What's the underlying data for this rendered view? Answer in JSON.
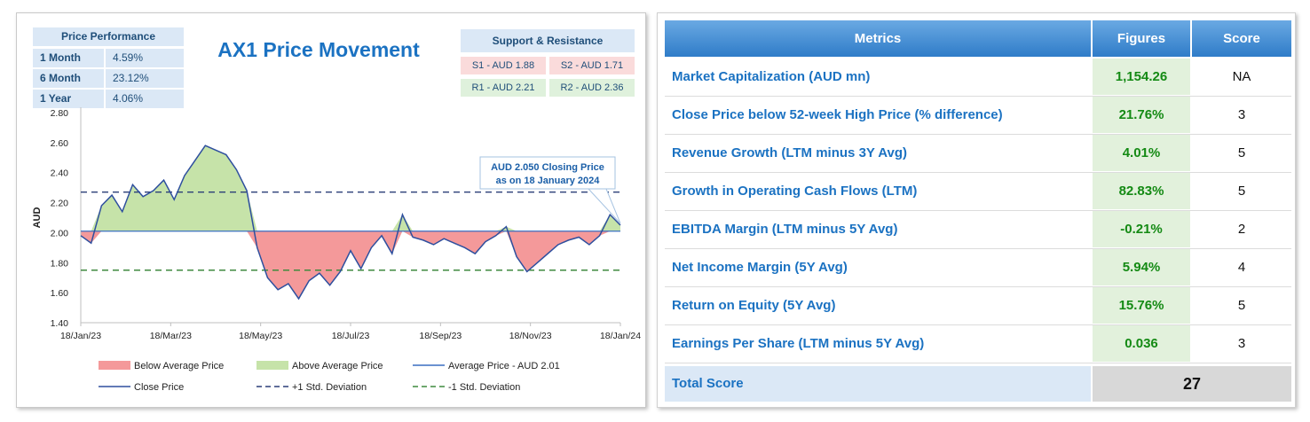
{
  "price_performance": {
    "header": "Price Performance",
    "rows": [
      {
        "period": "1 Month",
        "value": "4.59%"
      },
      {
        "period": "6 Month",
        "value": "23.12%"
      },
      {
        "period": "1 Year",
        "value": "4.06%"
      }
    ]
  },
  "support_resistance": {
    "header": "Support & Resistance",
    "s1": "S1 - AUD 1.88",
    "s2": "S2 - AUD 1.71",
    "r1": "R1 - AUD 2.21",
    "r2": "R2 - AUD 2.36"
  },
  "colors": {
    "below": "#f4999a",
    "above": "#c6e3a9",
    "line": "#2e4f9e",
    "avg": "#3a6fc2",
    "plus_sd": "#2b3f78",
    "minus_sd": "#3f8a3f",
    "title": "#1b72c2"
  },
  "chart_data": {
    "type": "area",
    "title": "AX1 Price Movement",
    "ylabel": "AUD",
    "ylim": [
      1.4,
      2.8
    ],
    "yticks": [
      "1.40",
      "1.60",
      "1.80",
      "2.00",
      "2.20",
      "2.40",
      "2.60",
      "2.80"
    ],
    "xticks": [
      "18/Jan/23",
      "18/Mar/23",
      "18/May/23",
      "18/Jul/23",
      "18/Sep/23",
      "18/Nov/23",
      "18/Jan/24"
    ],
    "average": 2.01,
    "plus_sd": 2.27,
    "minus_sd": 1.75,
    "annotation": {
      "line1": "AUD 2.050 Closing Price",
      "line2": "as on 18 January 2024"
    },
    "legend": [
      {
        "label": "Below Average Price",
        "kind": "fill-below"
      },
      {
        "label": "Above Average Price",
        "kind": "fill-above"
      },
      {
        "label": "Average Price - AUD 2.01",
        "kind": "line-avg"
      },
      {
        "label": "Close Price",
        "kind": "line-close"
      },
      {
        "label": "+1 Std. Deviation",
        "kind": "dash-plus"
      },
      {
        "label": "-1 Std. Deviation",
        "kind": "dash-minus"
      }
    ],
    "series": [
      {
        "name": "Close Price",
        "x": [
          "18/Jan/23",
          "25/Jan/23",
          "01/Feb/23",
          "08/Feb/23",
          "15/Feb/23",
          "22/Feb/23",
          "01/Mar/23",
          "08/Mar/23",
          "15/Mar/23",
          "22/Mar/23",
          "29/Mar/23",
          "05/Apr/23",
          "12/Apr/23",
          "19/Apr/23",
          "26/Apr/23",
          "03/May/23",
          "10/May/23",
          "17/May/23",
          "24/May/23",
          "31/May/23",
          "07/Jun/23",
          "14/Jun/23",
          "21/Jun/23",
          "28/Jun/23",
          "05/Jul/23",
          "12/Jul/23",
          "19/Jul/23",
          "26/Jul/23",
          "02/Aug/23",
          "09/Aug/23",
          "16/Aug/23",
          "23/Aug/23",
          "30/Aug/23",
          "06/Sep/23",
          "13/Sep/23",
          "20/Sep/23",
          "27/Sep/23",
          "04/Oct/23",
          "11/Oct/23",
          "18/Oct/23",
          "25/Oct/23",
          "01/Nov/23",
          "08/Nov/23",
          "15/Nov/23",
          "22/Nov/23",
          "29/Nov/23",
          "06/Dec/23",
          "13/Dec/23",
          "20/Dec/23",
          "27/Dec/23",
          "03/Jan/24",
          "10/Jan/24",
          "18/Jan/24"
        ],
        "values": [
          1.98,
          1.93,
          2.18,
          2.25,
          2.14,
          2.32,
          2.24,
          2.28,
          2.35,
          2.22,
          2.38,
          2.48,
          2.58,
          2.55,
          2.52,
          2.42,
          2.28,
          1.9,
          1.7,
          1.62,
          1.66,
          1.56,
          1.68,
          1.73,
          1.65,
          1.74,
          1.88,
          1.76,
          1.9,
          1.98,
          1.86,
          2.12,
          1.97,
          1.95,
          1.92,
          1.96,
          1.93,
          1.9,
          1.86,
          1.94,
          1.98,
          2.04,
          1.84,
          1.74,
          1.8,
          1.86,
          1.92,
          1.95,
          1.97,
          1.92,
          1.98,
          2.12,
          2.05
        ]
      }
    ]
  },
  "metrics_table": {
    "headers": {
      "metric": "Metrics",
      "figures": "Figures",
      "score": "Score"
    },
    "rows": [
      {
        "metric": "Market Capitalization (AUD mn)",
        "figure": "1,154.26",
        "score": "NA"
      },
      {
        "metric": "Close Price below 52-week High Price (% difference)",
        "figure": "21.76%",
        "score": "3"
      },
      {
        "metric": "Revenue Growth (LTM minus 3Y Avg)",
        "figure": "4.01%",
        "score": "5"
      },
      {
        "metric": "Growth in Operating Cash Flows (LTM)",
        "figure": "82.83%",
        "score": "5"
      },
      {
        "metric": "EBITDA Margin (LTM minus 5Y Avg)",
        "figure": "-0.21%",
        "score": "2"
      },
      {
        "metric": "Net Income Margin (5Y Avg)",
        "figure": "5.94%",
        "score": "4"
      },
      {
        "metric": "Return on Equity (5Y Avg)",
        "figure": "15.76%",
        "score": "5"
      },
      {
        "metric": "Earnings Per Share (LTM minus 5Y Avg)",
        "figure": "0.036",
        "score": "3"
      }
    ],
    "total_label": "Total Score",
    "total_value": "27"
  }
}
